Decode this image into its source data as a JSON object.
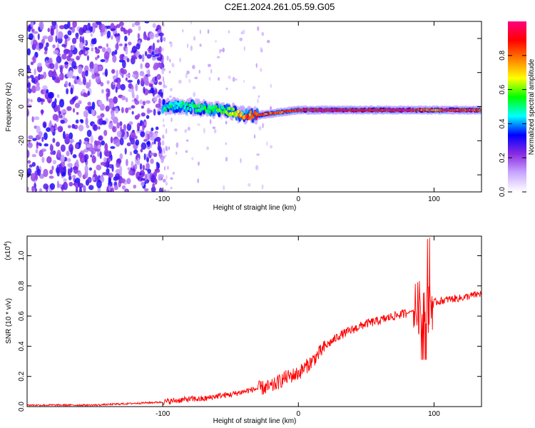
{
  "title": "C2E1.2024.261.05.59.G05",
  "chart_data": [
    {
      "type": "heatmap",
      "xlabel": "Height of straight line (km)",
      "ylabel": "Frequency (Hz)",
      "xlim": [
        -200,
        135
      ],
      "ylim": [
        -50,
        50
      ],
      "x_ticks": [
        -100,
        0,
        100
      ],
      "y_ticks": [
        -40,
        -20,
        0,
        20,
        40
      ],
      "colorbar": {
        "label": "Normalized spectral amplitude",
        "range": [
          0,
          1
        ],
        "ticks": [
          0.0,
          0.2,
          0.4,
          0.6,
          0.8
        ],
        "colors": [
          "#ffffff",
          "#c9a8ff",
          "#8a2be2",
          "#0000ff",
          "#00ffff",
          "#00ff00",
          "#ffff00",
          "#ff8000",
          "#ff0000",
          "#ff0080"
        ]
      },
      "ridge": {
        "x": [
          -100,
          -90,
          -80,
          -70,
          -60,
          -50,
          -40,
          -30,
          -20,
          -10,
          0,
          20,
          40,
          60,
          80,
          90,
          100,
          110,
          135
        ],
        "freq": [
          0,
          0.5,
          0,
          -1,
          -2,
          -3,
          -5,
          -5,
          -4,
          -3,
          -2,
          -2,
          -2,
          -2,
          -2,
          -2,
          -2,
          -2,
          -2
        ],
        "amplitude": [
          0.45,
          0.5,
          0.45,
          0.5,
          0.55,
          0.6,
          0.8,
          0.85,
          0.8,
          0.85,
          0.9,
          0.95,
          0.95,
          0.9,
          0.95,
          0.85,
          0.8,
          0.9,
          0.85
        ]
      },
      "grid": false
    },
    {
      "type": "line",
      "xlabel": "Height of straight line (km)",
      "ylabel": "SNR (10 * v/v)",
      "y_scale_label": "(x10",
      "y_scale_exp": "4",
      "xlim": [
        -200,
        135
      ],
      "ylim": [
        0,
        1.13
      ],
      "x_ticks": [
        -100,
        0,
        100
      ],
      "y_ticks": [
        0.0,
        0.2,
        0.4,
        0.6,
        0.8,
        1.0
      ],
      "series": [
        {
          "color": "#ff0000",
          "x": [
            -200,
            -150,
            -100,
            -90,
            -80,
            -70,
            -60,
            -50,
            -40,
            -30,
            -20,
            -10,
            0,
            5,
            10,
            15,
            20,
            30,
            40,
            50,
            60,
            70,
            80,
            85,
            90,
            95,
            100,
            110,
            120,
            135
          ],
          "values": [
            0.01,
            0.01,
            0.03,
            0.04,
            0.05,
            0.05,
            0.07,
            0.08,
            0.1,
            0.12,
            0.13,
            0.19,
            0.22,
            0.26,
            0.3,
            0.35,
            0.4,
            0.47,
            0.51,
            0.55,
            0.57,
            0.6,
            0.62,
            0.64,
            0.66,
            0.66,
            0.69,
            0.71,
            0.72,
            0.75
          ]
        }
      ],
      "grid": false
    }
  ]
}
